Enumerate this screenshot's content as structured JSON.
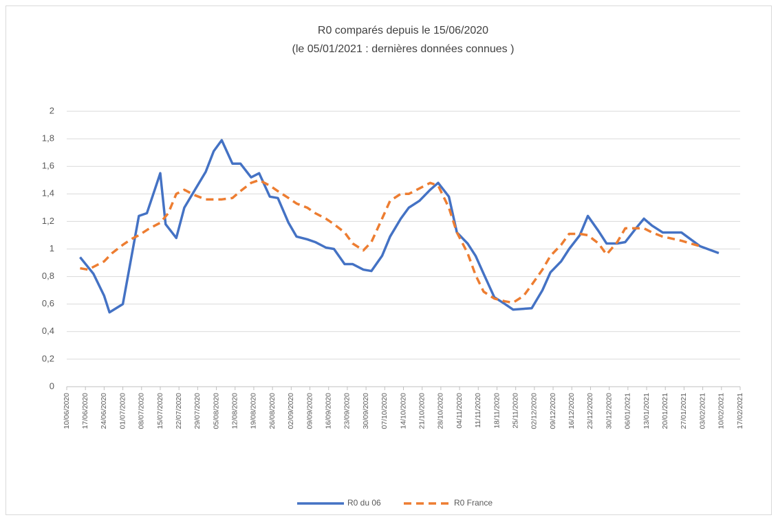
{
  "chart_data": {
    "type": "line",
    "title": "R0 comparés depuis le 15/06/2020",
    "subtitle": "(le 05/01/2021  :  dernières données connues )",
    "xlim": [
      "2020-06-10",
      "2021-02-17"
    ],
    "xticks": [
      {
        "value": "2020-06-10",
        "label": "10/06/2020"
      },
      {
        "value": "2020-06-17",
        "label": "17/06/2020"
      },
      {
        "value": "2020-06-24",
        "label": "24/06/2020"
      },
      {
        "value": "2020-07-01",
        "label": "01/07/2020"
      },
      {
        "value": "2020-07-08",
        "label": "08/07/2020"
      },
      {
        "value": "2020-07-15",
        "label": "15/07/2020"
      },
      {
        "value": "2020-07-22",
        "label": "22/07/2020"
      },
      {
        "value": "2020-07-29",
        "label": "29/07/2020"
      },
      {
        "value": "2020-08-05",
        "label": "05/08/2020"
      },
      {
        "value": "2020-08-12",
        "label": "12/08/2020"
      },
      {
        "value": "2020-08-19",
        "label": "19/08/2020"
      },
      {
        "value": "2020-08-26",
        "label": "26/08/2020"
      },
      {
        "value": "2020-09-02",
        "label": "02/09/2020"
      },
      {
        "value": "2020-09-09",
        "label": "09/09/2020"
      },
      {
        "value": "2020-09-16",
        "label": "16/09/2020"
      },
      {
        "value": "2020-09-23",
        "label": "23/09/2020"
      },
      {
        "value": "2020-09-30",
        "label": "30/09/2020"
      },
      {
        "value": "2020-10-07",
        "label": "07/10/2020"
      },
      {
        "value": "2020-10-14",
        "label": "14/10/2020"
      },
      {
        "value": "2020-10-21",
        "label": "21/10/2020"
      },
      {
        "value": "2020-10-28",
        "label": "28/10/2020"
      },
      {
        "value": "2020-11-04",
        "label": "04/11/2020"
      },
      {
        "value": "2020-11-11",
        "label": "11/11/2020"
      },
      {
        "value": "2020-11-18",
        "label": "18/11/2020"
      },
      {
        "value": "2020-11-25",
        "label": "25/11/2020"
      },
      {
        "value": "2020-12-02",
        "label": "02/12/2020"
      },
      {
        "value": "2020-12-09",
        "label": "09/12/2020"
      },
      {
        "value": "2020-12-16",
        "label": "16/12/2020"
      },
      {
        "value": "2020-12-23",
        "label": "23/12/2020"
      },
      {
        "value": "2020-12-30",
        "label": "30/12/2020"
      },
      {
        "value": "2021-01-06",
        "label": "06/01/2021"
      },
      {
        "value": "2021-01-13",
        "label": "13/01/2021"
      },
      {
        "value": "2021-01-20",
        "label": "20/01/2021"
      },
      {
        "value": "2021-01-27",
        "label": "27/01/2021"
      },
      {
        "value": "2021-02-03",
        "label": "03/02/2021"
      },
      {
        "value": "2021-02-10",
        "label": "10/02/2021"
      },
      {
        "value": "2021-02-17",
        "label": "17/02/2021"
      }
    ],
    "ylim": [
      0,
      2
    ],
    "yticks": [
      0,
      {
        "value": 0.2,
        "label": "0,2"
      },
      {
        "value": 0.4,
        "label": "0,4"
      },
      {
        "value": 0.6,
        "label": "0,6"
      },
      {
        "value": 0.8,
        "label": "0,8"
      },
      1,
      {
        "value": 1.2,
        "label": "1,2"
      },
      {
        "value": 1.4,
        "label": "1,4"
      },
      {
        "value": 1.6,
        "label": "1,6"
      },
      {
        "value": 1.8,
        "label": "1,8"
      },
      2
    ],
    "grid": true,
    "legend": "bottom",
    "series": [
      {
        "name": "R0 du 06",
        "color": "#4472c4",
        "dash": false,
        "x": [
          "2020-06-15",
          "2020-06-20",
          "2020-06-24",
          "2020-06-26",
          "2020-07-01",
          "2020-07-04",
          "2020-07-07",
          "2020-07-10",
          "2020-07-15",
          "2020-07-17",
          "2020-07-21",
          "2020-07-24",
          "2020-07-28",
          "2020-08-01",
          "2020-08-04",
          "2020-08-07",
          "2020-08-11",
          "2020-08-14",
          "2020-08-18",
          "2020-08-21",
          "2020-08-25",
          "2020-08-28",
          "2020-09-01",
          "2020-09-04",
          "2020-09-08",
          "2020-09-11",
          "2020-09-15",
          "2020-09-18",
          "2020-09-22",
          "2020-09-25",
          "2020-09-29",
          "2020-10-02",
          "2020-10-06",
          "2020-10-09",
          "2020-10-13",
          "2020-10-16",
          "2020-10-20",
          "2020-10-24",
          "2020-10-27",
          "2020-10-31",
          "2020-11-03",
          "2020-11-07",
          "2020-11-10",
          "2020-11-13",
          "2020-11-17",
          "2020-11-21",
          "2020-11-24",
          "2020-12-01",
          "2020-12-05",
          "2020-12-08",
          "2020-12-12",
          "2020-12-15",
          "2020-12-19",
          "2020-12-22",
          "2020-12-26",
          "2020-12-29",
          "2021-01-02",
          "2021-01-05",
          "2021-01-09",
          "2021-01-12",
          "2021-01-15",
          "2021-01-19",
          "2021-01-26",
          "2021-02-02",
          "2021-02-09"
        ],
        "values": [
          0.94,
          0.82,
          0.66,
          0.54,
          0.6,
          0.92,
          1.24,
          1.26,
          1.55,
          1.18,
          1.08,
          1.3,
          1.43,
          1.56,
          1.71,
          1.79,
          1.62,
          1.62,
          1.52,
          1.55,
          1.38,
          1.37,
          1.19,
          1.09,
          1.07,
          1.05,
          1.01,
          1.0,
          0.89,
          0.89,
          0.85,
          0.84,
          0.95,
          1.09,
          1.22,
          1.3,
          1.35,
          1.43,
          1.48,
          1.38,
          1.12,
          1.04,
          0.95,
          0.82,
          0.65,
          0.6,
          0.56,
          0.57,
          0.7,
          0.83,
          0.91,
          1.0,
          1.1,
          1.24,
          1.13,
          1.04,
          1.04,
          1.05,
          1.15,
          1.22,
          1.17,
          1.12,
          1.12,
          1.02,
          0.97
        ]
      },
      {
        "name": "R0 France",
        "color": "#ed7d31",
        "dash": true,
        "x": [
          "2020-06-15",
          "2020-06-18",
          "2020-06-24",
          "2020-06-27",
          "2020-07-01",
          "2020-07-04",
          "2020-07-07",
          "2020-07-11",
          "2020-07-15",
          "2020-07-18",
          "2020-07-21",
          "2020-07-24",
          "2020-07-28",
          "2020-08-01",
          "2020-08-04",
          "2020-08-07",
          "2020-08-11",
          "2020-08-14",
          "2020-08-18",
          "2020-08-21",
          "2020-08-25",
          "2020-08-28",
          "2020-09-01",
          "2020-09-04",
          "2020-09-08",
          "2020-09-11",
          "2020-09-15",
          "2020-09-18",
          "2020-09-22",
          "2020-09-25",
          "2020-09-29",
          "2020-10-02",
          "2020-10-06",
          "2020-10-09",
          "2020-10-13",
          "2020-10-16",
          "2020-10-20",
          "2020-10-24",
          "2020-10-27",
          "2020-10-31",
          "2020-11-03",
          "2020-11-07",
          "2020-11-10",
          "2020-11-13",
          "2020-11-17",
          "2020-11-21",
          "2020-11-24",
          "2020-11-28",
          "2020-12-01",
          "2020-12-05",
          "2020-12-08",
          "2020-12-12",
          "2020-12-15",
          "2020-12-19",
          "2020-12-22",
          "2020-12-26",
          "2020-12-29",
          "2021-01-02",
          "2021-01-05",
          "2021-01-09",
          "2021-01-12",
          "2021-01-15",
          "2021-01-19",
          "2021-01-26",
          "2021-02-02"
        ],
        "values": [
          0.86,
          0.85,
          0.91,
          0.97,
          1.03,
          1.07,
          1.1,
          1.15,
          1.19,
          1.26,
          1.4,
          1.43,
          1.39,
          1.36,
          1.36,
          1.36,
          1.37,
          1.42,
          1.48,
          1.5,
          1.46,
          1.42,
          1.37,
          1.33,
          1.3,
          1.26,
          1.22,
          1.18,
          1.12,
          1.04,
          0.99,
          1.05,
          1.22,
          1.35,
          1.4,
          1.4,
          1.44,
          1.48,
          1.46,
          1.3,
          1.12,
          0.97,
          0.81,
          0.69,
          0.64,
          0.62,
          0.61,
          0.66,
          0.74,
          0.85,
          0.95,
          1.03,
          1.11,
          1.11,
          1.1,
          1.04,
          0.96,
          1.05,
          1.15,
          1.15,
          1.15,
          1.12,
          1.09,
          1.06,
          1.02
        ]
      }
    ]
  }
}
